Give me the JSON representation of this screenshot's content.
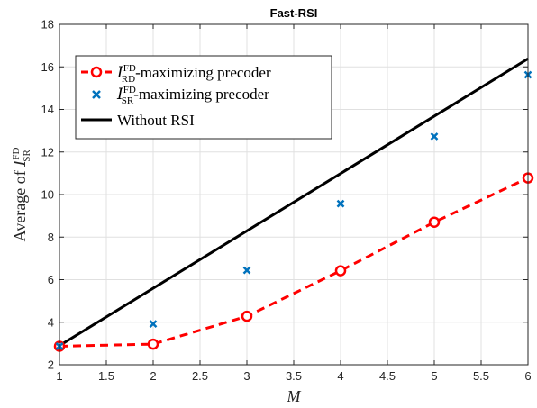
{
  "chart_data": {
    "type": "line",
    "title": "Fast-RSI",
    "xlabel": "M",
    "ylabel": {
      "main": "Average of ",
      "sym": "I",
      "sup": "FD",
      "sub": "SR"
    },
    "xlim": [
      1,
      6
    ],
    "ylim": [
      2,
      18
    ],
    "xticks": [
      1,
      1.5,
      2,
      2.5,
      3,
      3.5,
      4,
      4.5,
      5,
      5.5,
      6
    ],
    "yticks": [
      2,
      4,
      6,
      8,
      10,
      12,
      14,
      16,
      18
    ],
    "grid": true,
    "legend_position": "top-left",
    "series": [
      {
        "name": "-maximizing precoder",
        "legend_symbol": {
          "sym": "I",
          "sup": "FD",
          "sub": "RD"
        },
        "style": "dashed-circle",
        "color": "#ff0000",
        "x": [
          1,
          2,
          3,
          4,
          5,
          6
        ],
        "y": [
          2.87,
          2.97,
          4.28,
          6.42,
          8.7,
          10.78
        ]
      },
      {
        "name": "-maximizing precoder",
        "legend_symbol": {
          "sym": "I",
          "sup": "FD",
          "sub": "SR"
        },
        "style": "x-marker",
        "color": "#0072bd",
        "x": [
          1,
          2,
          3,
          4,
          5,
          6
        ],
        "y": [
          2.87,
          3.92,
          6.44,
          9.57,
          12.73,
          15.63
        ]
      },
      {
        "name": "Without RSI",
        "style": "solid",
        "color": "#000000",
        "x": [
          1,
          6
        ],
        "y": [
          2.9,
          16.38
        ]
      }
    ]
  }
}
